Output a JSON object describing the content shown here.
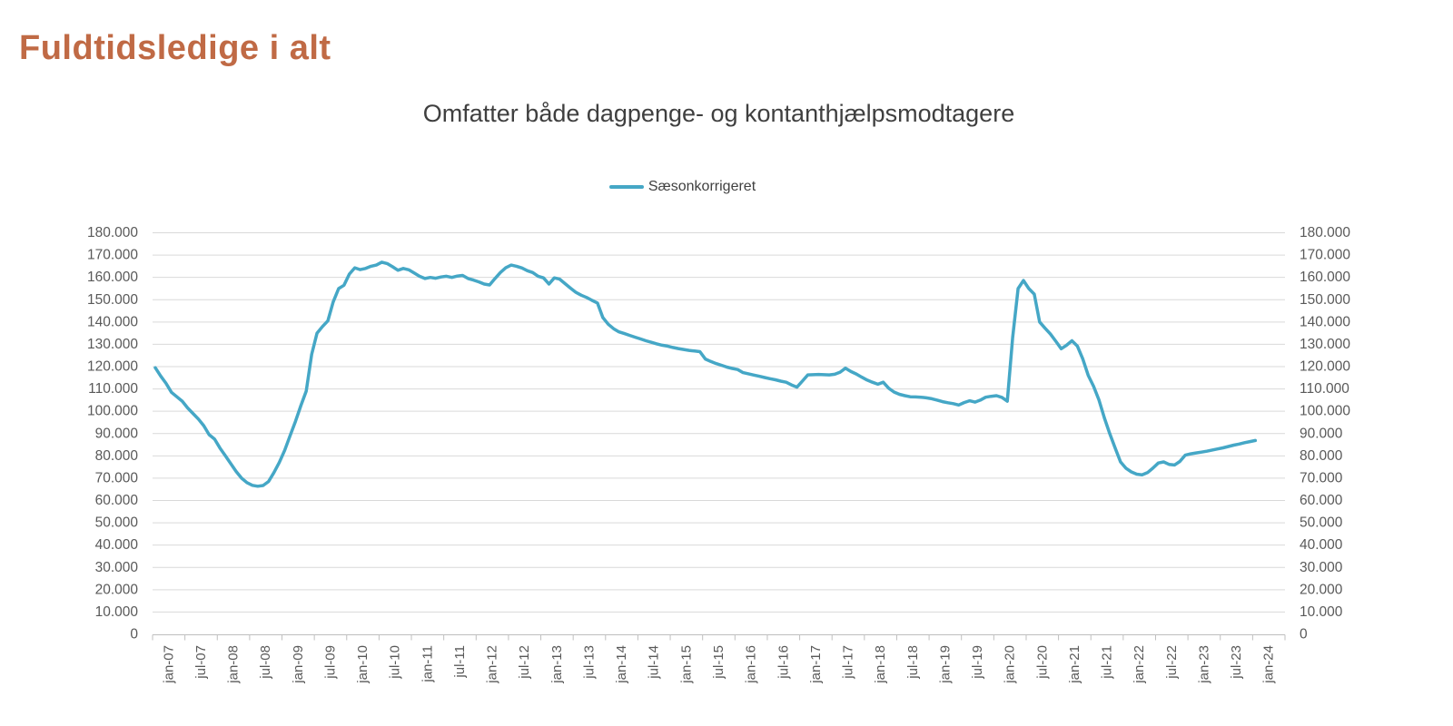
{
  "header": {
    "title": "Fuldtidsledige i alt"
  },
  "chart_data": {
    "type": "line",
    "title": "Omfatter både dagpenge- og kontanthjælpsmodtagere",
    "legend": {
      "position": "top-center",
      "entries": [
        "Sæsonkorrigeret"
      ]
    },
    "grid": true,
    "x_frequency": "monthly",
    "x_start": "jan-07",
    "x_end": "jan-24",
    "x_tick_labels": [
      "jan-07",
      "jul-07",
      "jan-08",
      "jul-08",
      "jan-09",
      "jul-09",
      "jan-10",
      "jul-10",
      "jan-11",
      "jul-11",
      "jan-12",
      "jul-12",
      "jan-13",
      "jul-13",
      "jan-14",
      "jul-14",
      "jan-15",
      "jul-15",
      "jan-16",
      "jul-16",
      "jan-17",
      "jul-17",
      "jan-18",
      "jul-18",
      "jan-19",
      "jul-19",
      "jan-20",
      "jul-20",
      "jan-21",
      "jul-21",
      "jan-22",
      "jul-22",
      "jan-23",
      "jul-23",
      "jan-24"
    ],
    "ylim": [
      0,
      180000
    ],
    "y_tick_step": 10000,
    "y_axis_sides": [
      "left",
      "right"
    ],
    "y_number_format": "thousands-dot",
    "colors": {
      "page_title": "#C06A45",
      "chart_title": "#3F3F3F",
      "axis_label": "#595959",
      "gridline": "#D9D9D9",
      "axis_line": "#BFBFBF",
      "series_line": "#45A7C6"
    },
    "series": [
      {
        "name": "Sæsonkorrigeret",
        "color": "#45A7C6",
        "values": [
          119500,
          115800,
          112500,
          108500,
          106500,
          104500,
          101500,
          99000,
          96500,
          93500,
          89500,
          87500,
          83500,
          80000,
          76500,
          73000,
          70000,
          68000,
          66800,
          66400,
          66700,
          68500,
          72500,
          77000,
          82500,
          89000,
          95500,
          102500,
          109000,
          125500,
          135000,
          138000,
          140500,
          149000,
          155000,
          156500,
          161500,
          164300,
          163500,
          164000,
          165000,
          165500,
          166800,
          166200,
          164800,
          163200,
          164000,
          163400,
          162000,
          160500,
          159500,
          160000,
          159600,
          160200,
          160500,
          160000,
          160600,
          160900,
          159500,
          158800,
          158000,
          157000,
          156600,
          159500,
          162200,
          164300,
          165500,
          165000,
          164200,
          163000,
          162200,
          160500,
          159800,
          157000,
          159800,
          159200,
          157200,
          155200,
          153300,
          152000,
          151000,
          149700,
          148500,
          142000,
          139000,
          137000,
          135600,
          134800,
          134000,
          133200,
          132400,
          131600,
          130900,
          130200,
          129600,
          129200,
          128600,
          128100,
          127700,
          127300,
          127000,
          126700,
          123400,
          122300,
          121400,
          120600,
          119800,
          119200,
          118700,
          117300,
          116800,
          116200,
          115700,
          115100,
          114600,
          114100,
          113500,
          113000,
          111800,
          110800,
          113500,
          116300,
          116400,
          116500,
          116400,
          116300,
          116600,
          117500,
          119300,
          117800,
          116700,
          115300,
          114000,
          113000,
          112100,
          113000,
          110300,
          108600,
          107600,
          107000,
          106500,
          106400,
          106300,
          106000,
          105600,
          105000,
          104300,
          103800,
          103400,
          102800,
          103900,
          104700,
          104100,
          105000,
          106300,
          106700,
          107000,
          106200,
          104500,
          133000,
          155000,
          158600,
          155000,
          152500,
          140000,
          137200,
          134600,
          131400,
          128000,
          129600,
          131600,
          129200,
          123500,
          116100,
          111200,
          105100,
          97000,
          90000,
          83500,
          77300,
          74500,
          72800,
          71800,
          71500,
          72500,
          74500,
          76800,
          77300,
          76200,
          75900,
          77500,
          80300,
          80900,
          81300,
          81700,
          82100,
          82600,
          83100,
          83600,
          84200,
          84800,
          85300,
          85900,
          86400,
          86900
        ]
      }
    ]
  }
}
